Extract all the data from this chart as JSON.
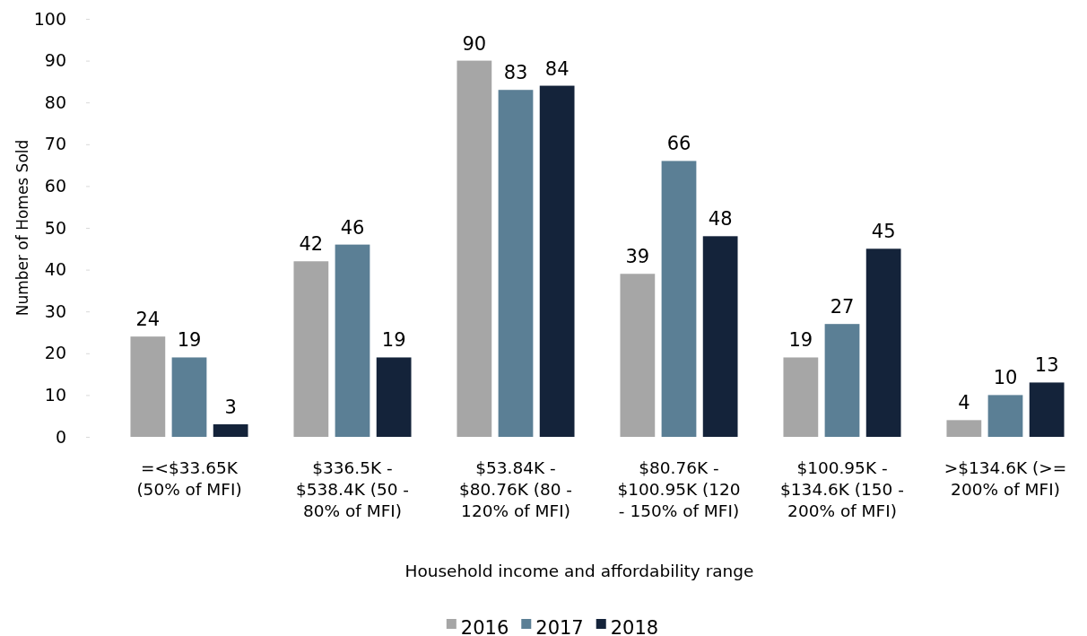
{
  "chart_data": {
    "type": "bar",
    "xlabel": "Household income and affordability range",
    "ylabel": "Number of Homes Sold",
    "categories": [
      "=<$33.65K (50% of MFI)",
      "$336.5K - $538.4K (50 - 80% of MFI)",
      "$53.84K - $80.76K (80 - 120% of MFI)",
      "$80.76K - $100.95K (120 - 150% of MFI)",
      "$100.95K - $134.6K (150 - 200% of MFI)",
      ">$134.6K (>= 200% of MFI)"
    ],
    "series": [
      {
        "name": "2016",
        "color": "#a6a6a6",
        "values": [
          24,
          42,
          90,
          39,
          19,
          4
        ]
      },
      {
        "name": "2017",
        "color": "#5b7f95",
        "values": [
          19,
          46,
          83,
          66,
          27,
          10
        ]
      },
      {
        "name": "2018",
        "color": "#14233a",
        "values": [
          3,
          19,
          84,
          48,
          45,
          13
        ]
      }
    ],
    "ylim": [
      0,
      100
    ],
    "yticks": [
      0,
      10,
      20,
      30,
      40,
      50,
      60,
      70,
      80,
      90,
      100
    ],
    "grid": false,
    "legend": "bottom",
    "data_labels": true
  }
}
